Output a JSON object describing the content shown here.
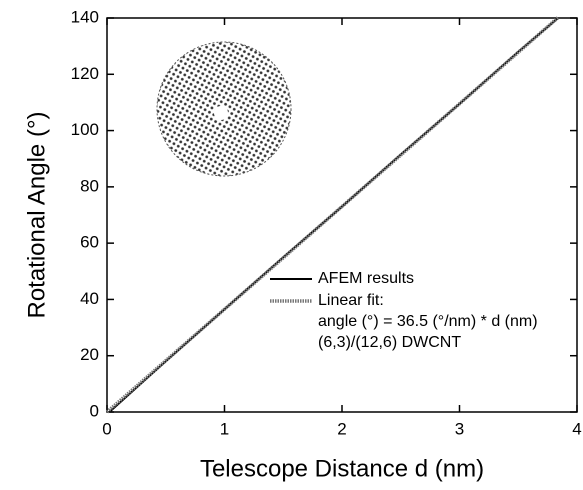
{
  "chart_data": {
    "type": "line",
    "x_label": "Telescope Distance d (nm)",
    "y_label": "Rotational Angle (°)",
    "xlim": [
      0,
      4
    ],
    "xticks": [
      0,
      1,
      2,
      3,
      4
    ],
    "ylim": [
      0,
      140
    ],
    "yticks": [
      0,
      20,
      40,
      60,
      80,
      100,
      120,
      140
    ],
    "series": [
      {
        "name": "AFEM results",
        "color": "#000000",
        "x": [
          0.02,
          0.5,
          1,
          1.5,
          2,
          2.5,
          3,
          3.5,
          3.84
        ],
        "values": [
          0,
          18,
          36.5,
          55,
          73,
          91.5,
          109.5,
          128,
          140
        ]
      },
      {
        "name": "Linear fit:",
        "color": "#777777",
        "x": [
          0,
          3.84
        ],
        "values": [
          0,
          140.2
        ]
      }
    ],
    "annotations": [
      "angle (°) = 36.5 (°/nm) * d (nm)",
      "(6,3)/(12,6) DWCNT"
    ]
  }
}
